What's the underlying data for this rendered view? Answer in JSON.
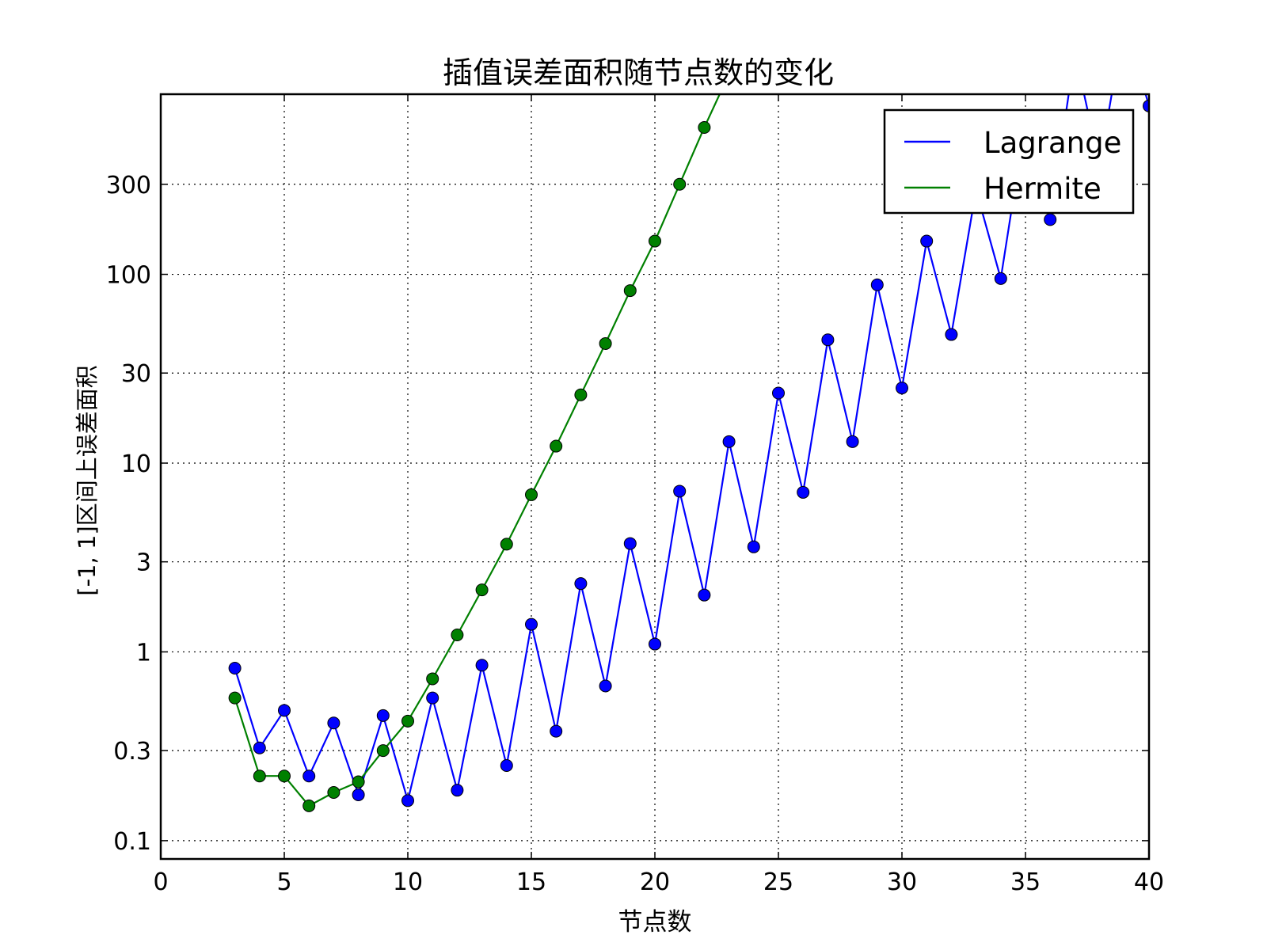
{
  "chart_data": {
    "type": "line",
    "title": "插值误差面积随节点数的变化",
    "xlabel": "节点数",
    "ylabel": "[-1, 1]区间上误差面积",
    "xlim": [
      0,
      40
    ],
    "ylim": [
      0.08,
      900
    ],
    "yscale": "log",
    "grid": true,
    "legend_position": "top-right",
    "x_ticks": [
      0,
      5,
      10,
      15,
      20,
      25,
      30,
      35,
      40
    ],
    "x_tick_labels": [
      "0",
      "5",
      "10",
      "15",
      "20",
      "25",
      "30",
      "35",
      "40"
    ],
    "y_ticks": [
      0.1,
      0.3,
      1,
      3,
      10,
      30,
      100,
      300
    ],
    "y_tick_labels": [
      "0.1",
      "0.3",
      "1",
      "3",
      "10",
      "30",
      "100",
      "300"
    ],
    "series": [
      {
        "name": "Lagrange",
        "color": "#0000ff",
        "x": [
          3,
          4,
          5,
          6,
          7,
          8,
          9,
          10,
          11,
          12,
          13,
          14,
          15,
          16,
          17,
          18,
          19,
          20,
          21,
          22,
          23,
          24,
          25,
          26,
          27,
          28,
          29,
          30,
          31,
          32,
          33,
          34,
          35,
          36,
          37,
          38,
          39,
          40
        ],
        "y": [
          0.82,
          0.31,
          0.49,
          0.22,
          0.42,
          0.175,
          0.46,
          0.163,
          0.57,
          0.185,
          0.85,
          0.25,
          1.4,
          0.38,
          2.3,
          0.66,
          3.75,
          1.1,
          7.1,
          2.0,
          13.0,
          3.6,
          23.5,
          7.0,
          45.0,
          13.0,
          88.0,
          25.0,
          150.0,
          48.0,
          280.0,
          95.0,
          650.0,
          195.0,
          1500.0,
          380.0,
          2200.0,
          780.0
        ]
      },
      {
        "name": "Hermite",
        "color": "#008000",
        "x": [
          3,
          4,
          5,
          6,
          7,
          8,
          9,
          10,
          11,
          12,
          13,
          14,
          15,
          16,
          17,
          18,
          19,
          20,
          21,
          22,
          23
        ],
        "y": [
          0.57,
          0.22,
          0.22,
          0.153,
          0.18,
          0.205,
          0.3,
          0.43,
          0.72,
          1.23,
          2.13,
          3.72,
          6.8,
          12.3,
          23.0,
          43.0,
          82.0,
          150.0,
          300.0,
          600.0,
          1150.0
        ]
      }
    ]
  }
}
